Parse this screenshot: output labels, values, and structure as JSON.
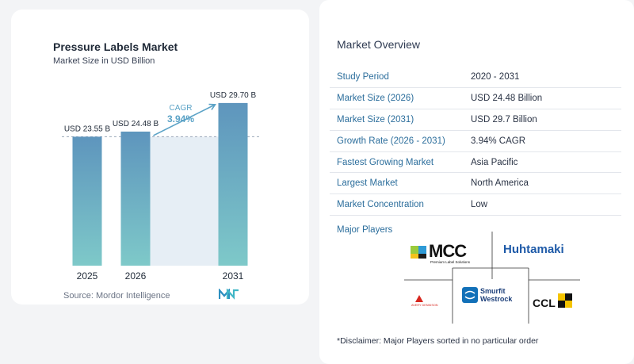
{
  "chart": {
    "title": "Pressure Labels Market",
    "subtitle": "Market Size in USD Billion",
    "cagr_label": "CAGR",
    "cagr_value": "3.94%",
    "source": "Source:  Mordor Intelligence"
  },
  "chart_data": {
    "type": "bar",
    "categories": [
      "2025",
      "2026",
      "2031"
    ],
    "values": [
      23.55,
      24.48,
      29.7
    ],
    "value_labels": [
      "USD 23.55 B",
      "USD 24.48 B",
      "USD 29.70 B"
    ],
    "title": "Pressure Labels Market",
    "subtitle": "Market Size in USD Billion",
    "xlabel": "",
    "ylabel": "",
    "ylim": [
      0,
      32
    ],
    "grid": false,
    "annotations": [
      {
        "text": "CAGR 3.94%",
        "from": "2026",
        "to": "2031"
      }
    ],
    "colors": {
      "bar_top": "#5e95bd",
      "bar_bottom": "#7ec9c9",
      "arrow": "#5aa2c6",
      "cagr_text": "#5aa2c6",
      "highlight_band": "#e6eef5"
    }
  },
  "overview": {
    "title": "Market Overview",
    "rows": [
      {
        "label": "Study Period",
        "value": "2020 - 2031"
      },
      {
        "label": "Market Size (2026)",
        "value": "USD 24.48 Billion"
      },
      {
        "label": "Market Size (2031)",
        "value": "USD 29.7 Billion"
      },
      {
        "label": "Growth Rate (2026 - 2031)",
        "value": "3.94% CAGR"
      },
      {
        "label": "Fastest Growing Market",
        "value": "Asia Pacific"
      },
      {
        "label": "Largest Market",
        "value": "North America"
      },
      {
        "label": "Market Concentration",
        "value": "Low"
      }
    ]
  },
  "players": {
    "title": "Major Players",
    "logos": [
      {
        "name": "MCC",
        "text": "MCC",
        "subtext": "Premium Label Solutions",
        "icon": "mcc-logo"
      },
      {
        "name": "Huhtamaki",
        "text": "Huhtamaki",
        "icon": "huhtamaki-logo"
      },
      {
        "name": "Avery Dennison",
        "text": "AVERY DENNISON",
        "icon": "avery-dennison-logo"
      },
      {
        "name": "Smurfit Westrock",
        "text1": "Smurfit",
        "text2": "Westrock",
        "icon": "smurfit-westrock-logo"
      },
      {
        "name": "CCL",
        "text": "CCL",
        "icon": "ccl-logo"
      }
    ],
    "disclaimer": "*Disclaimer: Major Players sorted in no particular order"
  },
  "colors": {
    "label_blue": "#2c6e9c",
    "divider": "#e3e6ec"
  }
}
